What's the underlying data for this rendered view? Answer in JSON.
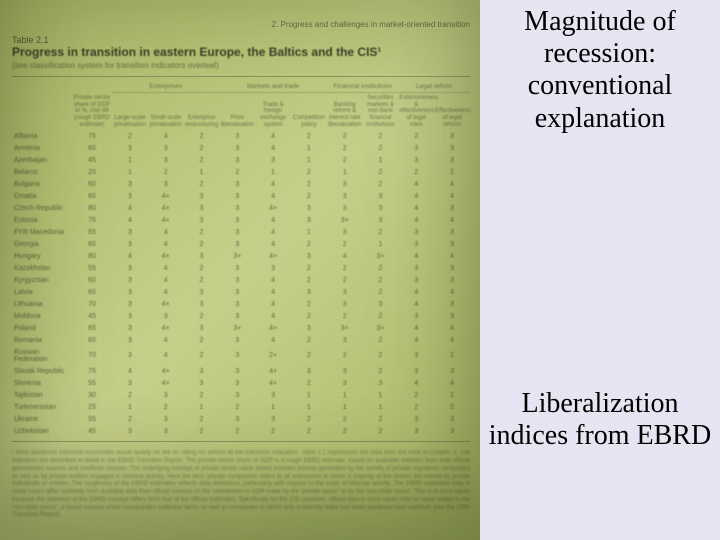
{
  "slide": {
    "heading_top": "Magnitude of recession: conventional explanation",
    "heading_bottom": "Liberalization indices from EBRD"
  },
  "photo": {
    "section_label": "2. Progress and challenges in market-oriented transition",
    "table_number": "Table 2.1",
    "table_title": "Progress in transition in eastern Europe, the Baltics and the CIS¹",
    "table_subtitle": "(see classification system for transition indicators overleaf)",
    "header_groups": [
      "Enterprises",
      "Markets and trade",
      "Financial institutions",
      "Legal reform"
    ],
    "sub_headers": [
      "Countries",
      "Private-sector share of GDP in %, mid-99 (rough EBRD estimate)",
      "Large-scale privatisation",
      "Small-scale privatisation",
      "Enterprise restructuring",
      "Price liberalisation",
      "Trade & foreign exchange system",
      "Competition policy",
      "Banking reform & interest rate liberalisation",
      "Securities markets & non-bank financial institutions",
      "Extensiveness & effectiveness of legal rules",
      "Effectiveness of legal reform"
    ],
    "rows": [
      {
        "c": "Albania",
        "v": [
          75,
          2,
          4,
          2,
          3,
          4,
          2,
          2,
          2,
          2,
          3
        ]
      },
      {
        "c": "Armenia",
        "v": [
          60,
          3,
          3,
          2,
          3,
          4,
          1,
          2,
          2,
          3,
          3
        ]
      },
      {
        "c": "Azerbaijan",
        "v": [
          45,
          1,
          3,
          2,
          3,
          3,
          1,
          2,
          1,
          3,
          3
        ]
      },
      {
        "c": "Belarus",
        "v": [
          20,
          1,
          2,
          1,
          2,
          1,
          2,
          1,
          2,
          2,
          2
        ]
      },
      {
        "c": "Bulgaria",
        "v": [
          60,
          3,
          3,
          2,
          3,
          4,
          2,
          3,
          2,
          4,
          4
        ]
      },
      {
        "c": "Croatia",
        "v": [
          60,
          3,
          "4+",
          3,
          3,
          4,
          2,
          3,
          3,
          4,
          4
        ]
      },
      {
        "c": "Czech Republic",
        "v": [
          80,
          4,
          "4+",
          3,
          3,
          "4+",
          3,
          3,
          3,
          4,
          3
        ]
      },
      {
        "c": "Estonia",
        "v": [
          75,
          4,
          "4+",
          3,
          3,
          4,
          3,
          "3+",
          3,
          4,
          4
        ]
      },
      {
        "c": "FYR Macedonia",
        "v": [
          55,
          3,
          4,
          2,
          3,
          4,
          1,
          3,
          2,
          3,
          3
        ]
      },
      {
        "c": "Georgia",
        "v": [
          60,
          3,
          4,
          2,
          3,
          4,
          2,
          2,
          1,
          3,
          3
        ]
      },
      {
        "c": "Hungary",
        "v": [
          80,
          4,
          "4+",
          3,
          "3+",
          "4+",
          3,
          4,
          "3+",
          4,
          4
        ]
      },
      {
        "c": "Kazakhstan",
        "v": [
          55,
          3,
          4,
          2,
          3,
          3,
          2,
          2,
          2,
          3,
          3
        ]
      },
      {
        "c": "Kyrgyzstan",
        "v": [
          60,
          3,
          4,
          2,
          3,
          4,
          2,
          2,
          2,
          3,
          3
        ]
      },
      {
        "c": "Latvia",
        "v": [
          65,
          3,
          4,
          3,
          3,
          4,
          3,
          3,
          2,
          4,
          4
        ]
      },
      {
        "c": "Lithuania",
        "v": [
          70,
          3,
          "4+",
          3,
          3,
          4,
          2,
          3,
          3,
          4,
          3
        ]
      },
      {
        "c": "Moldova",
        "v": [
          45,
          3,
          3,
          2,
          3,
          4,
          2,
          2,
          2,
          3,
          3
        ]
      },
      {
        "c": "Poland",
        "v": [
          65,
          3,
          "4+",
          3,
          "3+",
          "4+",
          3,
          "3+",
          "3+",
          4,
          4
        ]
      },
      {
        "c": "Romania",
        "v": [
          60,
          3,
          4,
          2,
          3,
          4,
          2,
          3,
          2,
          4,
          4
        ]
      },
      {
        "c": "Russian Federation",
        "v": [
          70,
          3,
          4,
          2,
          3,
          "2+",
          2,
          2,
          2,
          3,
          2
        ]
      },
      {
        "c": "Slovak Republic",
        "v": [
          75,
          4,
          "4+",
          3,
          3,
          "4+",
          3,
          3,
          2,
          3,
          3
        ]
      },
      {
        "c": "Slovenia",
        "v": [
          55,
          3,
          "4+",
          3,
          3,
          "4+",
          2,
          3,
          3,
          4,
          4
        ]
      },
      {
        "c": "Tajikistan",
        "v": [
          30,
          2,
          3,
          2,
          3,
          3,
          1,
          1,
          1,
          2,
          2
        ]
      },
      {
        "c": "Turkmenistan",
        "v": [
          25,
          1,
          2,
          1,
          2,
          1,
          1,
          1,
          1,
          2,
          2
        ]
      },
      {
        "c": "Ukraine",
        "v": [
          55,
          2,
          3,
          2,
          3,
          3,
          2,
          2,
          2,
          3,
          3
        ]
      },
      {
        "c": "Uzbekistan",
        "v": [
          45,
          3,
          3,
          2,
          2,
          2,
          2,
          2,
          2,
          3,
          3
        ]
      }
    ],
    "footnote": "¹ Most advanced industrial economies would qualify for the 4+ rating for almost all the transition indicators. Table 2.1 reproduces the data from the front of Chapter 2. The indicators are described in detail in the EBRD Transition Report. The private-sector share of GDP is a rough EBRD estimate, based on available statistics from both official government sources and unofficial sources. The underlying concept of private sector value added includes income generated by the activity of private registered companies as well as by private entities engaged in informal activity. Here the term 'private companies' refers to all enterprises in which a majority of the shares are owned by private individuals or entities. The roughness of the EBRD estimates reflects data limitations, particularly with respect to the scale of informal activity. The EBRD estimates may in some cases differ markedly from available data from official sources on the contribution to GDP made by the 'private sector' or by the 'non-state sector'. This is in most cases because the definition of the EBRD concept differs from that of the official estimates. Specifically for the CIS countries, official data in most cases refer to value added in the 'non-state sector', a broad concept which incorporates collective farms as well as companies in which only a minority stake has been privatised (see overleaf) (see the 1999 Transition Report)."
  }
}
